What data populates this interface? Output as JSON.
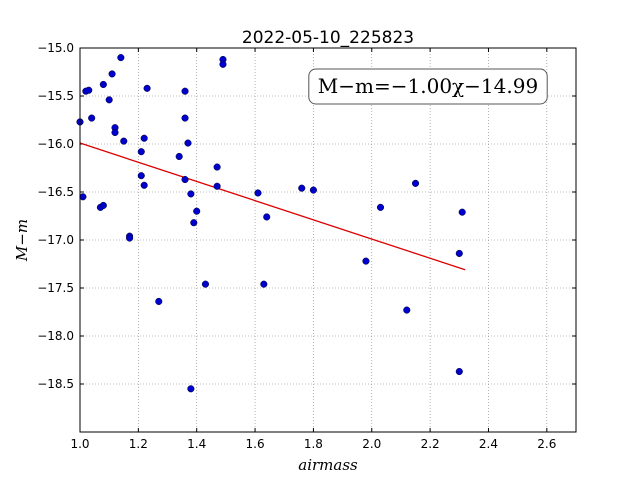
{
  "chart_data": {
    "type": "scatter",
    "title": "2022-05-10_225823",
    "xlabel": "airmass",
    "ylabel": "M−m",
    "xlim": [
      1.0,
      2.7
    ],
    "ylim": [
      -15.0,
      -19.0
    ],
    "y_inverted": true,
    "grid": true,
    "x_ticks": [
      "1.0",
      "1.2",
      "1.4",
      "1.6",
      "1.8",
      "2.0",
      "2.2",
      "2.4",
      "2.6"
    ],
    "y_ticks": [
      "−15.0",
      "−15.5",
      "−16.0",
      "−16.5",
      "−17.0",
      "−17.5",
      "−18.0",
      "−18.5"
    ],
    "annotation": "M−m=−1.00χ−14.99",
    "colors": {
      "points": "#0000cc",
      "fit": "#dd0000",
      "grid": "#808080"
    },
    "series": [
      {
        "kind": "points",
        "x": [
          1.0,
          1.02,
          1.03,
          1.04,
          1.01,
          1.07,
          1.08,
          1.08,
          1.1,
          1.11,
          1.12,
          1.12,
          1.14,
          1.15,
          1.17,
          1.17,
          1.21,
          1.21,
          1.22,
          1.22,
          1.23,
          1.27,
          1.34,
          1.36,
          1.36,
          1.36,
          1.37,
          1.38,
          1.38,
          1.39,
          1.4,
          1.43,
          1.47,
          1.47,
          1.49,
          1.49,
          1.61,
          1.63,
          1.64,
          1.76,
          1.8,
          1.98,
          2.03,
          2.12,
          2.15,
          2.3,
          2.3,
          2.31
        ],
        "y": [
          -15.77,
          -15.45,
          -15.44,
          -15.73,
          -16.55,
          -16.66,
          -16.64,
          -15.38,
          -15.54,
          -15.27,
          -15.83,
          -15.88,
          -15.1,
          -15.97,
          -16.96,
          -16.98,
          -16.08,
          -16.33,
          -16.43,
          -15.94,
          -15.42,
          -17.64,
          -16.13,
          -15.45,
          -15.73,
          -16.37,
          -15.99,
          -18.55,
          -16.52,
          -16.82,
          -16.7,
          -17.46,
          -16.24,
          -16.44,
          -15.12,
          -15.17,
          -16.51,
          -17.46,
          -16.76,
          -16.46,
          -16.48,
          -17.22,
          -16.66,
          -17.73,
          -16.41,
          -17.14,
          -18.37,
          -16.71
        ]
      },
      {
        "kind": "fit",
        "x": [
          1.0,
          2.32
        ],
        "y": [
          -15.99,
          -17.31
        ]
      }
    ]
  }
}
